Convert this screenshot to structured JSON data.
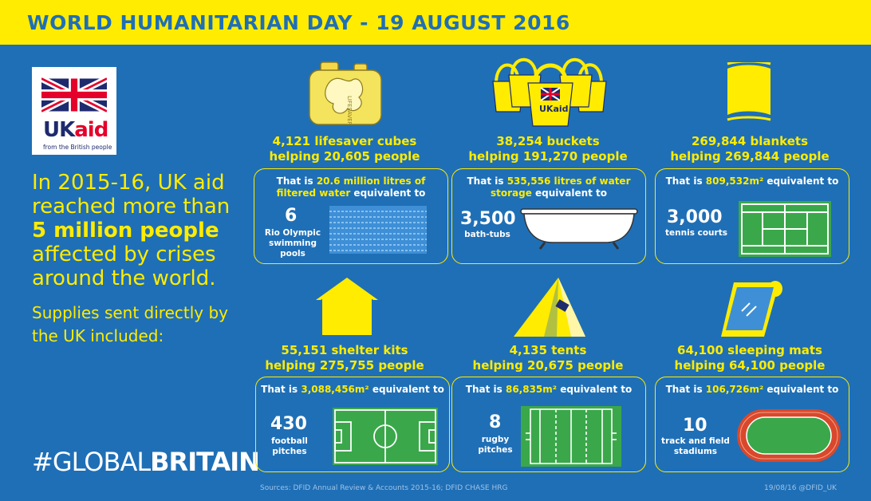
{
  "header": {
    "title": "WORLD HUMANITARIAN DAY - 19 AUGUST 2016"
  },
  "logo": {
    "uk": "UK",
    "aid": "aid",
    "tagline": "from the British people"
  },
  "intro": {
    "line1": "In 2015-16, UK aid reached more than",
    "highlight": "5 million people",
    "line2": "affected by crises around the world."
  },
  "supplies_intro": "Supplies sent directly by the UK included:",
  "hashtag": {
    "prefix": "#GLOBAL",
    "bold": "BRITAIN"
  },
  "items": [
    {
      "title1": "4,121 lifesaver cubes",
      "title2": "helping 20,605 people",
      "eq_pre": "That is ",
      "eq_hl": "20.6 million litres of filtered water",
      "eq_post": " equivalent to",
      "num": "6",
      "label": "Rio Olympic swimming pools"
    },
    {
      "title1": "38,254 buckets",
      "title2": "helping 191,270 people",
      "eq_pre": "That is ",
      "eq_hl": "535,556 litres of water storage",
      "eq_post": " equivalent to",
      "num": "3,500",
      "label": "bath-tubs"
    },
    {
      "title1": "269,844 blankets",
      "title2": "helping 269,844 people",
      "eq_pre": "That is ",
      "eq_hl": "809,532m²",
      "eq_post": " equivalent to",
      "num": "3,000",
      "label": "tennis courts"
    },
    {
      "title1": "55,151 shelter kits",
      "title2": "helping 275,755 people",
      "eq_pre": "That is ",
      "eq_hl": "3,088,456m²",
      "eq_post": " equivalent to",
      "num": "430",
      "label": "football pitches"
    },
    {
      "title1": "4,135 tents",
      "title2": "helping 20,675 people",
      "eq_pre": "That is ",
      "eq_hl": "86,835m²",
      "eq_post": " equivalent to",
      "num": "8",
      "label": "rugby pitches"
    },
    {
      "title1": "64,100 sleeping mats",
      "title2": "helping 64,100 people",
      "eq_pre": "That is ",
      "eq_hl": "106,726m²",
      "eq_post": " equivalent to",
      "num": "10",
      "label": "track and field stadiums"
    }
  ],
  "icon_labels": {
    "ukaid": "UKaid",
    "lifesaver": "LIFESAVER"
  },
  "footer": {
    "sources": "Sources: DFID Annual Review & Accounts 2015-16; DFID CHASE HRG",
    "stamp": "19/08/16 @DFID_UK"
  },
  "colors": {
    "background": "#1f6fb6",
    "accent": "#ffec00",
    "text": "#ffffff",
    "grass": "#3aa84a",
    "track": "#d9482b"
  }
}
